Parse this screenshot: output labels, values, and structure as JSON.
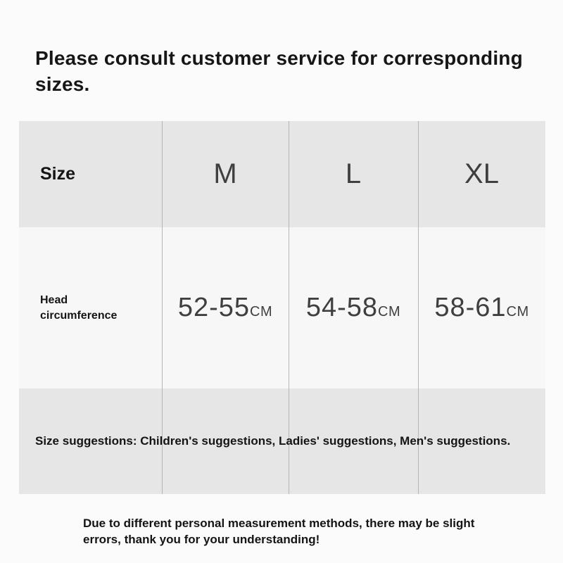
{
  "page": {
    "heading": "Please consult customer service for corresponding sizes.",
    "footer": "Due to different personal measurement methods, there may be slight errors, thank you for your understanding!"
  },
  "size_table": {
    "corner_label": "Size",
    "columns": [
      "M",
      "L",
      "XL"
    ],
    "measurement_row": {
      "label": "Head circumference",
      "values": [
        {
          "range": "52-55",
          "unit": "CM"
        },
        {
          "range": "54-58",
          "unit": "CM"
        },
        {
          "range": "58-61",
          "unit": "CM"
        }
      ]
    },
    "suggestions": "Size suggestions: Children's suggestions, Ladies' suggestions, Men's suggestions."
  },
  "colors": {
    "page_bg": "#fbfbfb",
    "header_row_bg": "#e6e6e6",
    "data_row_bg": "#f7f7f7",
    "suggestions_row_bg": "#e6e6e6",
    "divider": "#b5b5b5",
    "heading_text": "#161616",
    "value_text": "#3f3f3f"
  }
}
